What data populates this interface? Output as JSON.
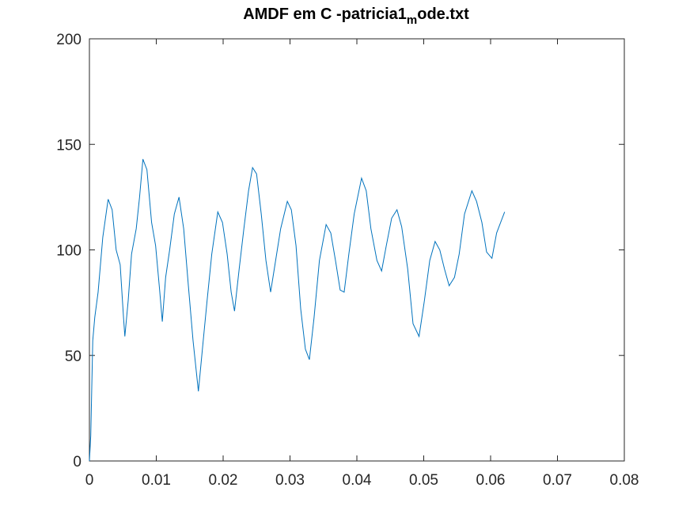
{
  "chart_data": {
    "type": "line",
    "title_parts": [
      "AMDF em C -patricia1",
      "m",
      "ode.txt"
    ],
    "xlim": [
      0,
      0.08
    ],
    "xticks": [
      0,
      0.01,
      0.02,
      0.03,
      0.04,
      0.05,
      0.06,
      0.07,
      0.08
    ],
    "ylim": [
      0,
      200
    ],
    "yticks": [
      0,
      50,
      100,
      150,
      200
    ],
    "color": "#0072bd",
    "x": [
      0,
      0.0002,
      0.0005,
      0.0008,
      0.0013,
      0.002,
      0.0028,
      0.0034,
      0.004,
      0.0046,
      0.0051,
      0.0053,
      0.0058,
      0.0063,
      0.007,
      0.0075,
      0.008,
      0.0086,
      0.0093,
      0.0099,
      0.0105,
      0.0109,
      0.0114,
      0.012,
      0.0127,
      0.0134,
      0.0141,
      0.0148,
      0.0155,
      0.0163,
      0.0169,
      0.0176,
      0.0183,
      0.0192,
      0.0199,
      0.0206,
      0.0212,
      0.0217,
      0.0224,
      0.0231,
      0.0238,
      0.0244,
      0.025,
      0.0257,
      0.0264,
      0.0271,
      0.0278,
      0.0286,
      0.0296,
      0.0302,
      0.0309,
      0.0316,
      0.0323,
      0.0329,
      0.0336,
      0.0344,
      0.0354,
      0.0361,
      0.0368,
      0.0375,
      0.0381,
      0.0388,
      0.0396,
      0.0407,
      0.0414,
      0.0421,
      0.043,
      0.0437,
      0.0444,
      0.0452,
      0.046,
      0.0467,
      0.0476,
      0.0484,
      0.0493,
      0.0501,
      0.0509,
      0.0517,
      0.0524,
      0.0531,
      0.0538,
      0.0546,
      0.0553,
      0.0561,
      0.0572,
      0.0579,
      0.0587,
      0.0594,
      0.0602,
      0.0609,
      0.0621
    ],
    "values": [
      0,
      12,
      57,
      68,
      80,
      106,
      124,
      119,
      100,
      93,
      68,
      59,
      76,
      98,
      110,
      125,
      143,
      138,
      113,
      102,
      81,
      66,
      87,
      100,
      117,
      125,
      110,
      83,
      57,
      33,
      53,
      76,
      98,
      118,
      113,
      98,
      80,
      71,
      91,
      110,
      128,
      139,
      136,
      117,
      95,
      80,
      94,
      110,
      123,
      119,
      102,
      72,
      53,
      48,
      68,
      95,
      112,
      108,
      95,
      81,
      80,
      98,
      117,
      134,
      128,
      110,
      95,
      90,
      102,
      115,
      119,
      111,
      91,
      65,
      59,
      76,
      95,
      104,
      100,
      91,
      83,
      87,
      98,
      117,
      128,
      123,
      113,
      99,
      96,
      108,
      118
    ]
  }
}
